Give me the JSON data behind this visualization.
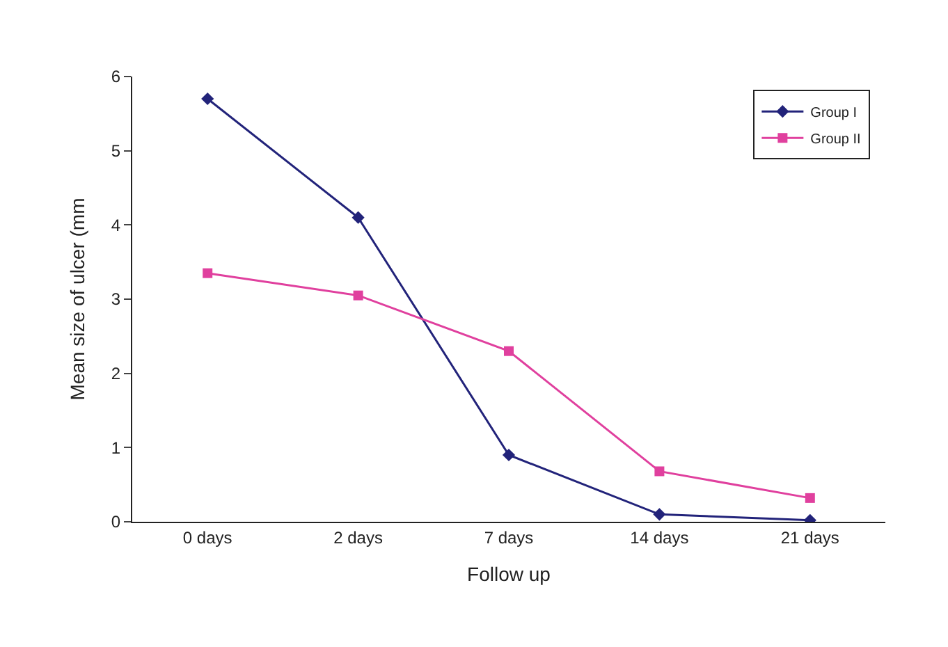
{
  "chart_data": {
    "type": "line",
    "xlabel": "Follow up",
    "ylabel": "Mean size of ulcer (mm",
    "categories": [
      "0 days",
      "2 days",
      "7 days",
      "14 days",
      "21 days"
    ],
    "series": [
      {
        "name": "Group I",
        "color": "#22237a",
        "marker": "diamond",
        "values": [
          5.7,
          4.1,
          0.9,
          0.1,
          0.02
        ]
      },
      {
        "name": "Group II",
        "color": "#e0409e",
        "marker": "square",
        "values": [
          3.35,
          3.05,
          2.3,
          0.68,
          0.32
        ]
      }
    ],
    "ylim": [
      0,
      6
    ],
    "yticks": [
      0,
      1,
      2,
      3,
      4,
      5,
      6
    ],
    "grid": false,
    "legend": "top right",
    "line_style": "solid"
  }
}
